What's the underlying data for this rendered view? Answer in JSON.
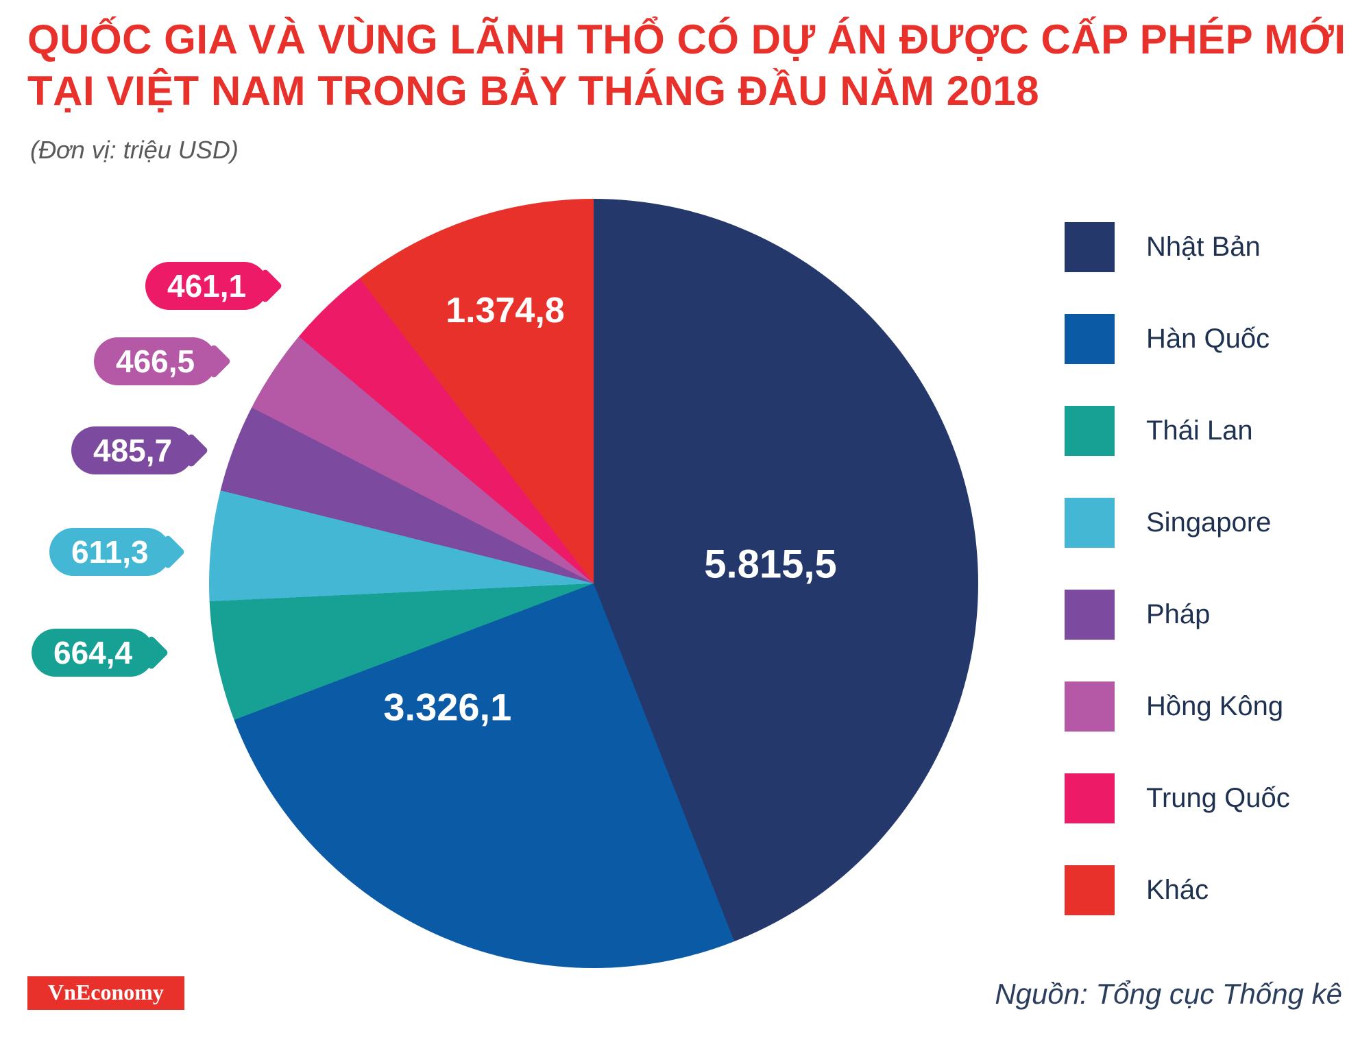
{
  "title": {
    "line1": "QUỐC GIA VÀ VÙNG LÃNH THỔ CÓ DỰ ÁN ĐƯỢC CẤP PHÉP MỚI",
    "line2": "TẠI VIỆT NAM TRONG BẢY THÁNG ĐẦU NĂM 2018"
  },
  "subtitle": "(Đơn vị: triệu USD)",
  "footer": {
    "brand": "VnEconomy",
    "source": "Nguồn: Tổng cục Thống kê"
  },
  "chart_data": {
    "type": "pie",
    "title": "Quốc gia và vùng lãnh thổ có dự án được cấp phép mới tại Việt Nam trong bảy tháng đầu năm 2018",
    "unit": "triệu USD",
    "legend_position": "right",
    "start_angle_deg": 0,
    "direction": "clockwise",
    "segments": [
      {
        "label": "Nhật Bản",
        "value": 5815.5,
        "display": "5.815,5",
        "color": "#24386B",
        "label_placement": "inside"
      },
      {
        "label": "Hàn Quốc",
        "value": 3326.1,
        "display": "3.326,1",
        "color": "#0B5AA5",
        "label_placement": "inside"
      },
      {
        "label": "Thái Lan",
        "value": 664.4,
        "display": "664,4",
        "color": "#17A094",
        "label_placement": "callout"
      },
      {
        "label": "Singapore",
        "value": 611.3,
        "display": "611,3",
        "color": "#44B7D4",
        "label_placement": "callout"
      },
      {
        "label": "Pháp",
        "value": 485.7,
        "display": "485,7",
        "color": "#7C4B9F",
        "label_placement": "callout"
      },
      {
        "label": "Hồng Kông",
        "value": 466.5,
        "display": "466,5",
        "color": "#B558A6",
        "label_placement": "callout"
      },
      {
        "label": "Trung Quốc",
        "value": 461.1,
        "display": "461,1",
        "color": "#ED1A67",
        "label_placement": "callout"
      },
      {
        "label": "Khác",
        "value": 1374.8,
        "display": "1.374,8",
        "color": "#E8312B",
        "label_placement": "inside"
      }
    ]
  }
}
